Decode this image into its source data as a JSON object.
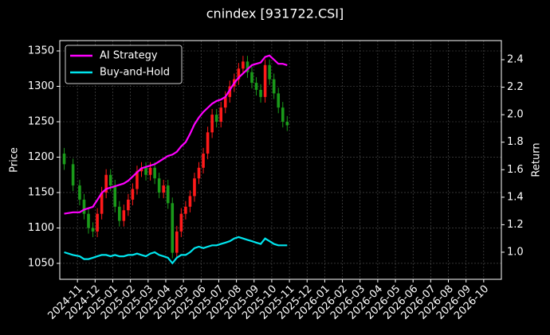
{
  "chart_data": {
    "type": "candlestick",
    "title": "cnindex [931722.CSI]",
    "ylabel": "Price",
    "y2label": "Return",
    "x": [
      "2024-10",
      "2024-10",
      "2024-11",
      "2024-11",
      "2024-11",
      "2024-11",
      "2024-12",
      "2024-12",
      "2024-12",
      "2024-12",
      "2025-01",
      "2025-01",
      "2025-01",
      "2025-01",
      "2025-02",
      "2025-02",
      "2025-02",
      "2025-02",
      "2025-03",
      "2025-03",
      "2025-03",
      "2025-03",
      "2025-04",
      "2025-04",
      "2025-04",
      "2025-04",
      "2025-05",
      "2025-05",
      "2025-05",
      "2025-05",
      "2025-06",
      "2025-06",
      "2025-06",
      "2025-06",
      "2025-07",
      "2025-07",
      "2025-07",
      "2025-07",
      "2025-08",
      "2025-08",
      "2025-08",
      "2025-08",
      "2025-09",
      "2025-09",
      "2025-09",
      "2025-09",
      "2025-10",
      "2025-10",
      "2025-10",
      "2025-10"
    ],
    "open": [
      1205,
      1190,
      1160,
      1140,
      1120,
      1100,
      1095,
      1120,
      1150,
      1175,
      1160,
      1130,
      1110,
      1125,
      1140,
      1155,
      1180,
      1185,
      1175,
      1185,
      1170,
      1150,
      1160,
      1135,
      1065,
      1095,
      1120,
      1130,
      1145,
      1170,
      1185,
      1205,
      1235,
      1260,
      1250,
      1270,
      1285,
      1300,
      1310,
      1325,
      1335,
      1320,
      1305,
      1295,
      1285,
      1330,
      1310,
      1290,
      1270,
      1250
    ],
    "high": [
      1213,
      1198,
      1168,
      1148,
      1128,
      1108,
      1128,
      1158,
      1183,
      1183,
      1168,
      1138,
      1133,
      1148,
      1163,
      1188,
      1193,
      1193,
      1193,
      1193,
      1178,
      1168,
      1168,
      1143,
      1103,
      1128,
      1138,
      1153,
      1178,
      1193,
      1213,
      1243,
      1268,
      1268,
      1278,
      1293,
      1308,
      1318,
      1333,
      1343,
      1343,
      1328,
      1313,
      1303,
      1338,
      1338,
      1318,
      1298,
      1278,
      1258
    ],
    "low": [
      1182,
      1152,
      1132,
      1112,
      1092,
      1087,
      1087,
      1112,
      1142,
      1152,
      1122,
      1102,
      1102,
      1117,
      1132,
      1147,
      1172,
      1167,
      1167,
      1162,
      1142,
      1142,
      1127,
      1057,
      1057,
      1087,
      1112,
      1122,
      1137,
      1162,
      1177,
      1197,
      1227,
      1242,
      1242,
      1262,
      1277,
      1292,
      1302,
      1317,
      1312,
      1297,
      1287,
      1277,
      1277,
      1302,
      1282,
      1262,
      1242,
      1237
    ],
    "close": [
      1190,
      1160,
      1140,
      1120,
      1100,
      1095,
      1120,
      1150,
      1175,
      1160,
      1130,
      1110,
      1125,
      1140,
      1155,
      1180,
      1185,
      1175,
      1185,
      1170,
      1150,
      1160,
      1135,
      1065,
      1095,
      1120,
      1130,
      1145,
      1170,
      1185,
      1205,
      1235,
      1260,
      1250,
      1270,
      1285,
      1300,
      1310,
      1325,
      1335,
      1320,
      1305,
      1295,
      1285,
      1330,
      1310,
      1290,
      1270,
      1250,
      1245
    ],
    "up_color": "#ff1a1a",
    "down_color": "#1a9a1a",
    "series": [
      {
        "name": "AI Strategy",
        "color": "#ff00ff",
        "axis": "y2",
        "values": [
          1.28,
          1.29,
          1.29,
          1.31,
          1.32,
          1.33,
          1.38,
          1.43,
          1.46,
          1.47,
          1.48,
          1.49,
          1.5,
          1.52,
          1.55,
          1.58,
          1.61,
          1.62,
          1.63,
          1.64,
          1.66,
          1.68,
          1.7,
          1.71,
          1.73,
          1.77,
          1.8,
          1.86,
          1.93,
          1.98,
          2.02,
          2.05,
          2.08,
          2.1,
          2.11,
          2.13,
          2.18,
          2.23,
          2.27,
          2.3,
          2.33,
          2.36,
          2.37,
          2.38,
          2.42,
          2.43,
          2.4,
          2.37,
          2.37,
          2.36
        ]
      },
      {
        "name": "Buy-and-Hold",
        "color": "#00e5ee",
        "axis": "y2",
        "values": [
          1.0,
          0.98,
          0.97,
          0.95,
          0.95,
          0.96,
          0.97,
          0.98,
          0.98,
          0.97,
          0.98,
          0.97,
          0.97,
          0.98,
          0.98,
          0.99,
          0.98,
          0.97,
          0.99,
          1.0,
          0.98,
          0.97,
          0.96,
          0.92,
          0.96,
          0.98,
          0.98,
          1.0,
          1.03,
          1.04,
          1.03,
          1.04,
          1.05,
          1.05,
          1.06,
          1.07,
          1.08,
          1.1,
          1.11,
          1.1,
          1.09,
          1.08,
          1.07,
          1.06,
          1.1,
          1.08,
          1.06,
          1.05,
          1.05,
          1.05
        ]
      }
    ],
    "xlim": [
      "2024-10",
      "2026-11"
    ],
    "xticks": [
      "2024-11",
      "2024-12",
      "2025-01",
      "2025-02",
      "2025-03",
      "2025-04",
      "2025-05",
      "2025-06",
      "2025-07",
      "2025-08",
      "2025-09",
      "2025-10",
      "2025-11",
      "2025-12",
      "2026-01",
      "2026-02",
      "2026-03",
      "2026-04",
      "2026-05",
      "2026-06",
      "2026-07",
      "2026-08",
      "2026-09",
      "2026-10"
    ],
    "ylim": [
      1027.5,
      1364.6
    ],
    "yticks": [
      1050,
      1100,
      1150,
      1200,
      1250,
      1300,
      1350
    ],
    "y2lim": [
      0.803,
      2.539
    ],
    "y2ticks": [
      {
        "value": 1,
        "label": "1.0"
      },
      1.2,
      1.4,
      1.6,
      1.8,
      {
        "value": 2,
        "label": "2.0"
      },
      2.2,
      2.4
    ],
    "grid": true,
    "legend": "upper left"
  }
}
